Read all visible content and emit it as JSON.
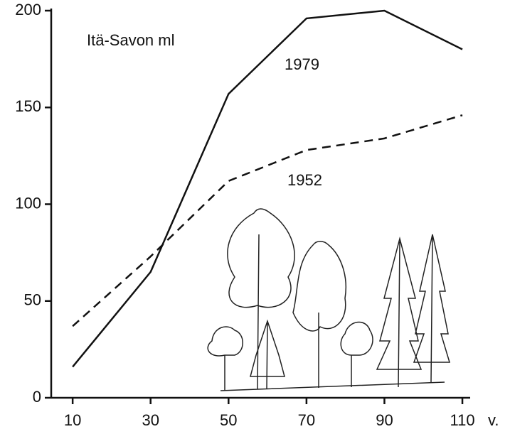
{
  "chart_data": {
    "type": "line",
    "annotation": "Itä-Savon ml",
    "x_label": "v.",
    "x": [
      10,
      30,
      50,
      70,
      90,
      110
    ],
    "series": [
      {
        "name": "1979",
        "color": "#111111",
        "dash": "solid",
        "values": [
          16,
          65,
          157,
          196,
          200,
          180
        ]
      },
      {
        "name": "1952",
        "color": "#111111",
        "dash": "dashed",
        "values": [
          37,
          73,
          112,
          128,
          134,
          146
        ]
      }
    ],
    "xlim": [
      4.5,
      112
    ],
    "ylim": [
      0,
      200
    ],
    "xticks": [
      10,
      30,
      50,
      70,
      90,
      110
    ],
    "yticks": [
      0,
      50,
      100,
      150,
      200
    ]
  }
}
